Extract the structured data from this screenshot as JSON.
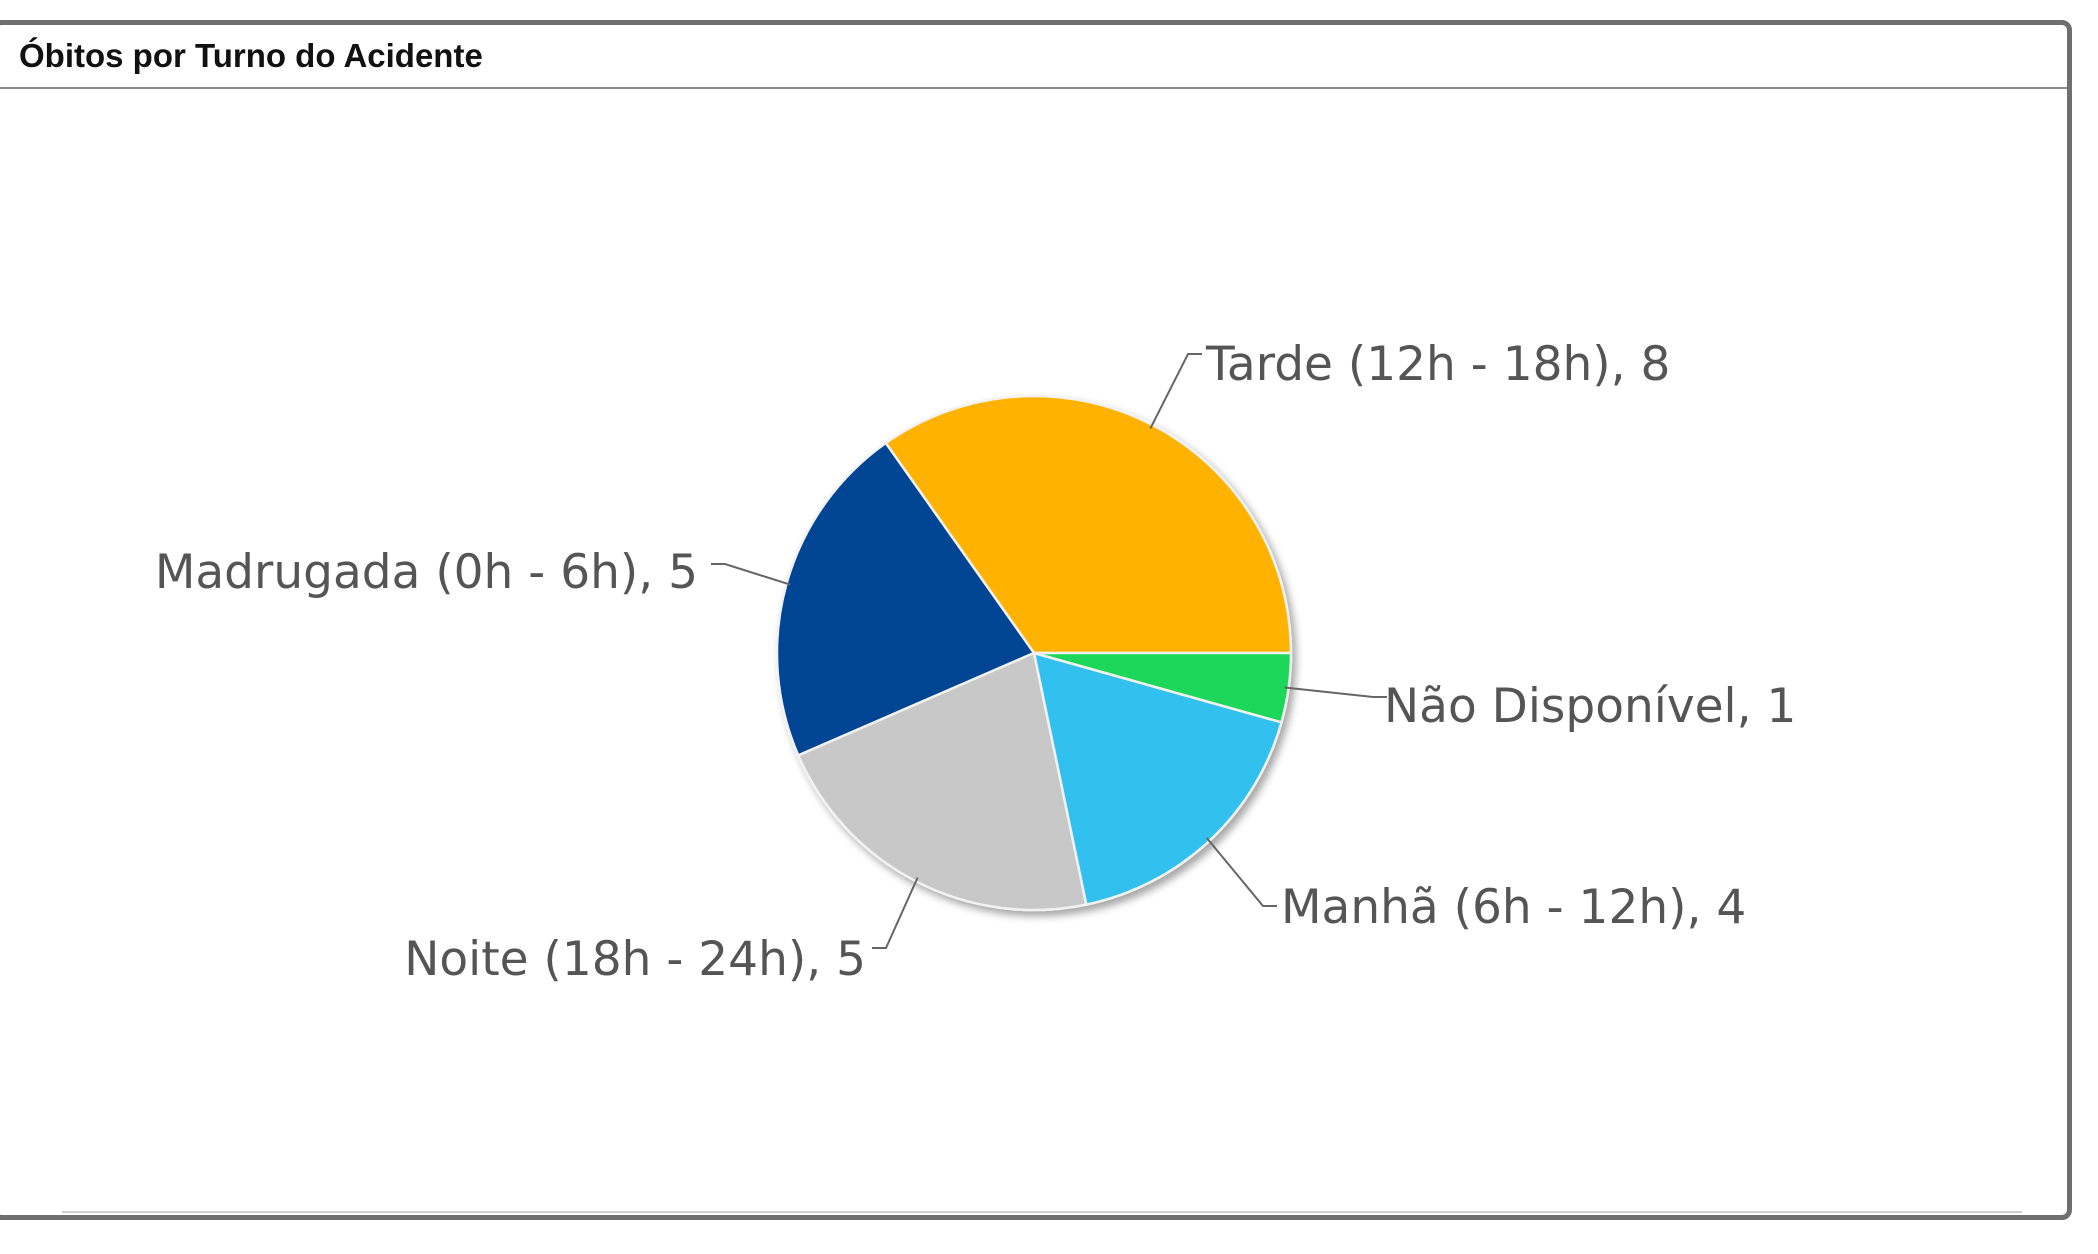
{
  "panel": {
    "title": "Óbitos por Turno do Acidente"
  },
  "chart_data": {
    "type": "pie",
    "title": "Óbitos por Turno do Acidente",
    "slices": [
      {
        "label": "Tarde (12h - 18h)",
        "value": 8,
        "color": "#ffb300",
        "display": "Tarde (12h - 18h), 8"
      },
      {
        "label": "Madrugada (0h - 6h)",
        "value": 5,
        "color": "#004493",
        "display": "Madrugada (0h - 6h), 5"
      },
      {
        "label": "Noite (18h - 24h)",
        "value": 5,
        "color": "#c8c8c8",
        "display": "Noite (18h - 24h), 5"
      },
      {
        "label": "Manhã (6h - 12h)",
        "value": 4,
        "color": "#33c1ef",
        "display": "Manhã (6h - 12h), 4"
      },
      {
        "label": "Não Disponível",
        "value": 1,
        "color": "#1fd75a",
        "display": "Não Disponível, 1"
      }
    ],
    "legend": "none",
    "data_labels": "outside with leader lines"
  }
}
